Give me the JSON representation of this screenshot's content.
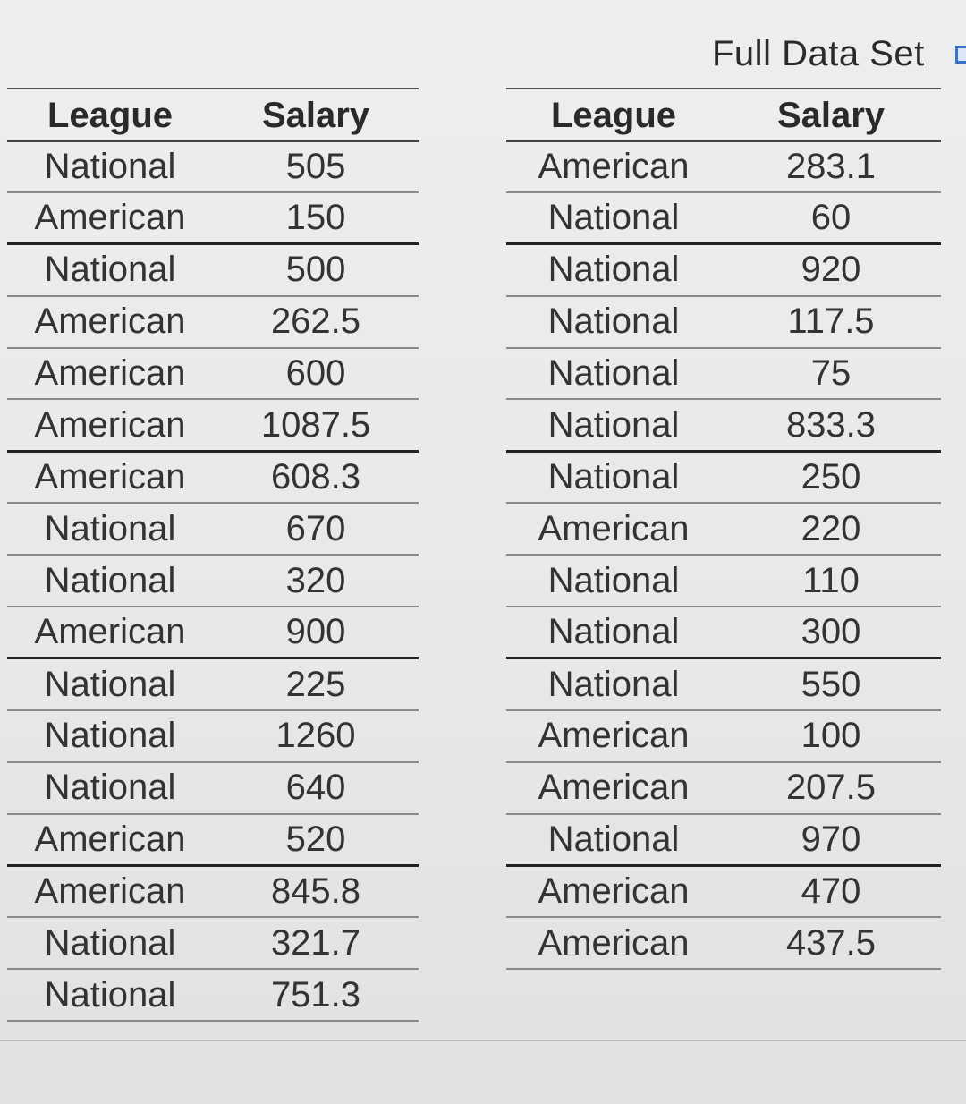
{
  "header": {
    "full_data_set_label": "Full Data Set",
    "icon": "document-icon"
  },
  "left_table": {
    "columns": [
      "League",
      "Salary"
    ],
    "rows": [
      [
        "National",
        "505"
      ],
      [
        "American",
        "150"
      ],
      [
        "National",
        "500"
      ],
      [
        "American",
        "262.5"
      ],
      [
        "American",
        "600"
      ],
      [
        "American",
        "1087.5"
      ],
      [
        "American",
        "608.3"
      ],
      [
        "National",
        "670"
      ],
      [
        "National",
        "320"
      ],
      [
        "American",
        "900"
      ],
      [
        "National",
        "225"
      ],
      [
        "National",
        "1260"
      ],
      [
        "National",
        "640"
      ],
      [
        "American",
        "520"
      ],
      [
        "American",
        "845.8"
      ],
      [
        "National",
        "321.7"
      ],
      [
        "National",
        "751.3"
      ]
    ]
  },
  "right_table": {
    "columns": [
      "League",
      "Salary"
    ],
    "rows": [
      [
        "American",
        "283.1"
      ],
      [
        "National",
        "60"
      ],
      [
        "National",
        "920"
      ],
      [
        "National",
        "117.5"
      ],
      [
        "National",
        "75"
      ],
      [
        "National",
        "833.3"
      ],
      [
        "National",
        "250"
      ],
      [
        "American",
        "220"
      ],
      [
        "National",
        "110"
      ],
      [
        "National",
        "300"
      ],
      [
        "National",
        "550"
      ],
      [
        "American",
        "100"
      ],
      [
        "American",
        "207.5"
      ],
      [
        "National",
        "970"
      ],
      [
        "American",
        "470"
      ],
      [
        "American",
        "437.5"
      ]
    ]
  },
  "colors": {
    "link_icon": "#3b73c9",
    "background": "#e6e8e9",
    "text": "#2a2a2a"
  }
}
